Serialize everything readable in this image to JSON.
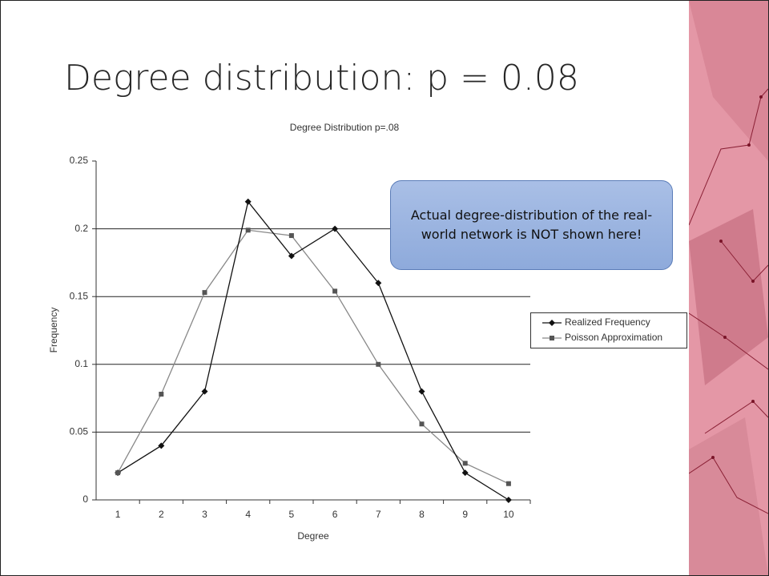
{
  "slide_title": "Degree distribution: p = 0.08",
  "callout": "Actual degree-distribution of the real-world network is NOT shown here!",
  "chart_data": {
    "type": "line",
    "title": "Degree Distribution p=.08",
    "x_label": "Degree",
    "y_label": "Frequency",
    "categories": [
      "1",
      "2",
      "3",
      "4",
      "5",
      "6",
      "7",
      "8",
      "9",
      "10"
    ],
    "series": [
      {
        "name": "Realized Frequency",
        "color": "#111111",
        "marker": "diamond",
        "values": [
          0.02,
          0.04,
          0.08,
          0.22,
          0.18,
          0.2,
          0.16,
          0.08,
          0.02,
          0
        ]
      },
      {
        "name": "Poisson Approximation",
        "color": "#555555",
        "line_color": "#888888",
        "marker": "square",
        "values": [
          0.02,
          0.078,
          0.153,
          0.199,
          0.195,
          0.154,
          0.1,
          0.056,
          0.027,
          0.012
        ]
      }
    ],
    "ylim": [
      0,
      0.25
    ],
    "yticks": [
      0,
      0.05,
      0.1,
      0.15,
      0.2,
      0.25
    ],
    "grid": true,
    "legend": "right"
  }
}
